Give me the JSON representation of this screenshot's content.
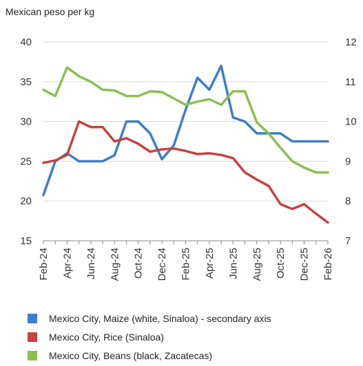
{
  "chart_data": {
    "type": "line",
    "title": "Mexican peso per kg",
    "x": [
      "Feb-24",
      "Mar-24",
      "Apr-24",
      "May-24",
      "Jun-24",
      "Jul-24",
      "Aug-24",
      "Sep-24",
      "Oct-24",
      "Nov-24",
      "Dec-24",
      "Jan-25",
      "Feb-25",
      "Mar-25",
      "Apr-25",
      "May-25",
      "Jun-25",
      "Jul-25",
      "Aug-25",
      "Sep-25",
      "Oct-25",
      "Nov-25",
      "Dec-25",
      "Jan-26",
      "Feb-26"
    ],
    "x_tick_labels": [
      "Feb-24",
      "Apr-24",
      "Jun-24",
      "Aug-24",
      "Oct-24",
      "Dec-24",
      "Feb-25",
      "Apr-25",
      "Jun-25",
      "Aug-25",
      "Oct-25",
      "Dec-25",
      "Feb-26"
    ],
    "y_left": {
      "min": 15,
      "max": 40,
      "ticks": [
        "15",
        "20",
        "25",
        "30",
        "35",
        "40"
      ]
    },
    "y_right": {
      "min": 7,
      "max": 12,
      "ticks": [
        "7",
        "8",
        "9",
        "10",
        "11",
        "12"
      ]
    },
    "grid": "horizontal",
    "legend_position": "bottom",
    "series": [
      {
        "name": "Mexico City, Maize (white, Sinaloa) - secondary axis",
        "axis": "right",
        "color": "#3d7dca",
        "values": [
          8.15,
          9,
          9.2,
          9,
          9,
          9,
          9.15,
          10,
          10,
          9.7,
          9.05,
          9.4,
          10.3,
          11.1,
          10.8,
          11.4,
          10.1,
          10,
          9.7,
          9.7,
          9.7,
          9.5,
          9.5,
          9.5,
          9.5
        ]
      },
      {
        "name": "Mexico City, Rice (Sinaloa)",
        "axis": "left",
        "color": "#c8413d",
        "values": [
          24.8,
          25.1,
          25.8,
          30,
          29.3,
          29.3,
          27.5,
          27.9,
          27.2,
          26.2,
          26.5,
          26.6,
          26.3,
          25.9,
          26,
          25.8,
          25.4,
          23.6,
          22.7,
          21.9,
          19.6,
          19,
          19.6,
          18.4,
          17.3
        ]
      },
      {
        "name": "Mexico City, Beans (black, Zacatecas)",
        "axis": "left",
        "color": "#8ac050",
        "values": [
          34,
          33.2,
          36.8,
          35.7,
          35,
          34,
          33.9,
          33.2,
          33.2,
          33.8,
          33.7,
          32.9,
          32.1,
          32.5,
          32.8,
          32.1,
          33.8,
          33.8,
          29.9,
          28.5,
          26.7,
          25,
          24.2,
          23.6,
          23.6
        ]
      }
    ]
  }
}
